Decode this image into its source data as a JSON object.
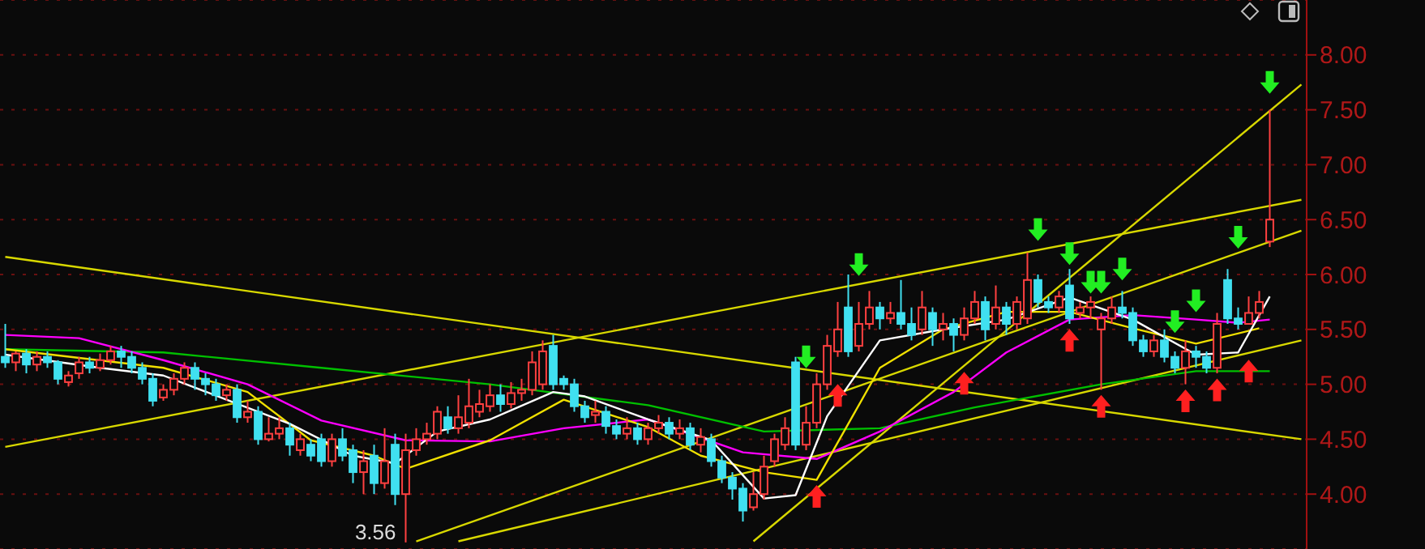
{
  "chart_data": {
    "type": "candlestick",
    "categories": [
      null,
      null,
      null,
      null,
      null,
      null,
      null,
      null,
      null,
      null,
      null,
      null,
      null,
      null,
      null,
      null,
      null,
      null,
      null,
      null,
      null,
      null,
      null,
      null,
      null,
      null,
      null,
      null,
      null,
      null,
      null,
      null,
      null,
      null,
      null,
      null,
      null,
      null,
      null,
      null,
      null,
      null,
      null,
      null,
      null,
      null,
      null,
      null,
      null,
      null,
      null,
      null,
      null,
      null,
      null,
      null,
      null,
      null,
      null,
      null,
      null,
      null,
      null,
      null,
      null,
      null,
      null,
      null,
      null,
      null,
      null,
      null,
      null,
      null,
      null,
      null,
      null,
      null,
      null,
      null,
      null,
      null,
      null,
      null,
      null,
      null,
      null,
      null,
      null,
      null,
      null,
      null,
      null,
      null,
      null,
      null,
      null,
      null,
      null,
      null,
      null,
      null,
      null,
      null,
      null,
      null,
      null,
      null,
      null,
      null,
      null,
      null,
      null,
      null,
      null,
      null,
      null,
      null,
      null,
      null,
      null,
      null,
      null,
      null
    ],
    "ohlc": [
      [
        5.25,
        5.55,
        5.15,
        5.2
      ],
      [
        5.2,
        5.3,
        5.12,
        5.28
      ],
      [
        5.28,
        5.32,
        5.1,
        5.18
      ],
      [
        5.18,
        5.3,
        5.12,
        5.25
      ],
      [
        5.25,
        5.3,
        5.15,
        5.2
      ],
      [
        5.2,
        5.22,
        5.0,
        5.05
      ],
      [
        5.02,
        5.12,
        4.98,
        5.08
      ],
      [
        5.1,
        5.25,
        5.05,
        5.2
      ],
      [
        5.2,
        5.25,
        5.1,
        5.15
      ],
      [
        5.15,
        5.28,
        5.12,
        5.22
      ],
      [
        5.22,
        5.35,
        5.18,
        5.3
      ],
      [
        5.3,
        5.35,
        5.15,
        5.25
      ],
      [
        5.25,
        5.3,
        5.1,
        5.15
      ],
      [
        5.15,
        5.2,
        5.0,
        5.05
      ],
      [
        5.05,
        5.1,
        4.8,
        4.85
      ],
      [
        4.88,
        5.0,
        4.85,
        4.95
      ],
      [
        4.95,
        5.1,
        4.9,
        5.05
      ],
      [
        5.05,
        5.2,
        5.0,
        5.15
      ],
      [
        5.15,
        5.2,
        4.95,
        5.05
      ],
      [
        5.05,
        5.1,
        4.9,
        5.0
      ],
      [
        5.0,
        5.05,
        4.85,
        4.9
      ],
      [
        4.9,
        5.0,
        4.85,
        4.95
      ],
      [
        4.95,
        5.0,
        4.65,
        4.7
      ],
      [
        4.7,
        4.85,
        4.65,
        4.75
      ],
      [
        4.75,
        4.8,
        4.45,
        4.5
      ],
      [
        4.5,
        4.7,
        4.48,
        4.55
      ],
      [
        4.55,
        4.7,
        4.5,
        4.6
      ],
      [
        4.6,
        4.65,
        4.35,
        4.45
      ],
      [
        4.4,
        4.55,
        4.35,
        4.5
      ],
      [
        4.45,
        4.5,
        4.3,
        4.35
      ],
      [
        4.5,
        4.55,
        4.25,
        4.3
      ],
      [
        4.3,
        4.55,
        4.25,
        4.5
      ],
      [
        4.5,
        4.6,
        4.3,
        4.35
      ],
      [
        4.4,
        4.45,
        4.1,
        4.2
      ],
      [
        4.2,
        4.4,
        4.0,
        4.3
      ],
      [
        4.35,
        4.45,
        4.0,
        4.1
      ],
      [
        4.1,
        4.6,
        4.05,
        4.3
      ],
      [
        4.45,
        4.55,
        3.9,
        4.0
      ],
      [
        4.0,
        4.55,
        3.56,
        4.4
      ],
      [
        4.4,
        4.6,
        4.35,
        4.5
      ],
      [
        4.5,
        4.65,
        4.45,
        4.55
      ],
      [
        4.55,
        4.8,
        4.5,
        4.75
      ],
      [
        4.7,
        4.8,
        4.55,
        4.6
      ],
      [
        4.6,
        4.9,
        4.55,
        4.7
      ],
      [
        4.65,
        5.05,
        4.6,
        4.8
      ],
      [
        4.75,
        4.95,
        4.7,
        4.82
      ],
      [
        4.8,
        5.0,
        4.75,
        4.9
      ],
      [
        4.9,
        5.0,
        4.75,
        4.82
      ],
      [
        4.82,
        5.02,
        4.78,
        4.92
      ],
      [
        4.92,
        5.05,
        4.85,
        4.95
      ],
      [
        4.95,
        5.3,
        4.9,
        5.2
      ],
      [
        5.0,
        5.4,
        4.95,
        5.3
      ],
      [
        5.35,
        5.45,
        4.95,
        5.0
      ],
      [
        5.05,
        5.08,
        4.95,
        5.0
      ],
      [
        5.0,
        5.05,
        4.75,
        4.8
      ],
      [
        4.8,
        4.85,
        4.65,
        4.7
      ],
      [
        4.72,
        4.85,
        4.65,
        4.75
      ],
      [
        4.75,
        4.8,
        4.55,
        4.62
      ],
      [
        4.62,
        4.68,
        4.5,
        4.55
      ],
      [
        4.55,
        4.7,
        4.5,
        4.6
      ],
      [
        4.6,
        4.65,
        4.45,
        4.5
      ],
      [
        4.5,
        4.65,
        4.45,
        4.6
      ],
      [
        4.6,
        4.72,
        4.55,
        4.65
      ],
      [
        4.65,
        4.7,
        4.5,
        4.55
      ],
      [
        4.55,
        4.68,
        4.5,
        4.6
      ],
      [
        4.6,
        4.65,
        4.4,
        4.45
      ],
      [
        4.45,
        4.6,
        4.38,
        4.52
      ],
      [
        4.5,
        4.55,
        4.25,
        4.3
      ],
      [
        4.3,
        4.35,
        4.1,
        4.15
      ],
      [
        4.15,
        4.2,
        3.95,
        4.05
      ],
      [
        4.05,
        4.1,
        3.75,
        3.85
      ],
      [
        3.88,
        4.2,
        3.85,
        4.0
      ],
      [
        4.0,
        4.35,
        3.95,
        4.25
      ],
      [
        4.3,
        4.55,
        4.25,
        4.5
      ],
      [
        4.45,
        4.7,
        4.4,
        4.6
      ],
      [
        5.2,
        5.25,
        4.4,
        4.45
      ],
      [
        4.45,
        4.8,
        4.4,
        4.65
      ],
      [
        4.65,
        5.1,
        4.6,
        5.0
      ],
      [
        5.0,
        5.45,
        4.95,
        5.35
      ],
      [
        5.3,
        5.75,
        5.25,
        5.5
      ],
      [
        5.7,
        6.0,
        5.25,
        5.3
      ],
      [
        5.35,
        5.75,
        5.3,
        5.55
      ],
      [
        5.55,
        5.85,
        5.5,
        5.7
      ],
      [
        5.7,
        5.75,
        5.5,
        5.6
      ],
      [
        5.6,
        5.75,
        5.55,
        5.65
      ],
      [
        5.65,
        5.95,
        5.5,
        5.55
      ],
      [
        5.55,
        5.7,
        5.4,
        5.45
      ],
      [
        5.5,
        5.85,
        5.45,
        5.7
      ],
      [
        5.65,
        5.7,
        5.35,
        5.5
      ],
      [
        5.5,
        5.65,
        5.4,
        5.55
      ],
      [
        5.55,
        5.6,
        5.3,
        5.45
      ],
      [
        5.45,
        5.7,
        5.4,
        5.6
      ],
      [
        5.6,
        5.85,
        5.55,
        5.75
      ],
      [
        5.75,
        5.8,
        5.4,
        5.5
      ],
      [
        5.55,
        5.9,
        5.5,
        5.7
      ],
      [
        5.7,
        5.75,
        5.45,
        5.55
      ],
      [
        5.55,
        5.8,
        5.5,
        5.75
      ],
      [
        5.6,
        6.2,
        5.55,
        5.95
      ],
      [
        5.95,
        6.0,
        5.7,
        5.75
      ],
      [
        5.75,
        5.8,
        5.65,
        5.7
      ],
      [
        5.7,
        5.85,
        5.65,
        5.8
      ],
      [
        5.9,
        6.05,
        5.55,
        5.6
      ],
      [
        5.65,
        5.75,
        5.6,
        5.7
      ],
      [
        5.7,
        5.8,
        5.6,
        5.75
      ],
      [
        5.5,
        5.65,
        4.95,
        5.6
      ],
      [
        5.6,
        5.8,
        5.55,
        5.7
      ],
      [
        5.7,
        5.85,
        5.6,
        5.65
      ],
      [
        5.65,
        5.7,
        5.35,
        5.4
      ],
      [
        5.4,
        5.45,
        5.25,
        5.3
      ],
      [
        5.3,
        5.45,
        5.25,
        5.4
      ],
      [
        5.4,
        5.5,
        5.2,
        5.25
      ],
      [
        5.25,
        5.3,
        5.1,
        5.15
      ],
      [
        5.15,
        5.4,
        5.0,
        5.3
      ],
      [
        5.3,
        5.35,
        5.15,
        5.25
      ],
      [
        5.25,
        5.3,
        5.1,
        5.15
      ],
      [
        5.15,
        5.65,
        5.1,
        5.55
      ],
      [
        5.95,
        6.05,
        5.55,
        5.6
      ],
      [
        5.6,
        5.7,
        5.5,
        5.55
      ],
      [
        5.55,
        5.8,
        5.55,
        5.65
      ],
      [
        5.65,
        5.85,
        5.6,
        5.75
      ],
      [
        6.3,
        7.5,
        6.25,
        6.5
      ],
      null,
      null,
      null
    ],
    "colors": [
      "#40e0f0",
      "#ff4040",
      "#40e0f0",
      "#ff4040",
      "#40e0f0",
      "#40e0f0",
      "#ff4040",
      "#ff4040",
      "#40e0f0",
      "#ff4040",
      "#ff4040",
      "#40e0f0",
      "#40e0f0",
      "#40e0f0",
      "#40e0f0",
      "#ff4040",
      "#ff4040",
      "#ff4040",
      "#40e0f0",
      "#40e0f0",
      "#40e0f0",
      "#ff4040",
      "#40e0f0",
      "#ff4040",
      "#40e0f0",
      "#ff4040",
      "#ff4040",
      "#40e0f0",
      "#ff4040",
      "#40e0f0",
      "#40e0f0",
      "#ff4040",
      "#40e0f0",
      "#40e0f0",
      "#ff4040",
      "#40e0f0",
      "#ff4040",
      "#40e0f0",
      "#ff4040",
      "#ff4040",
      "#ff4040",
      "#ff4040",
      "#40e0f0",
      "#ff4040",
      "#ff4040",
      "#ff4040",
      "#ff4040",
      "#40e0f0",
      "#ff4040",
      "#ff4040",
      "#ff4040",
      "#ff4040",
      "#40e0f0",
      "#40e0f0",
      "#40e0f0",
      "#40e0f0",
      "#ff4040",
      "#40e0f0",
      "#40e0f0",
      "#ff4040",
      "#40e0f0",
      "#ff4040",
      "#ff4040",
      "#40e0f0",
      "#ff4040",
      "#40e0f0",
      "#ff4040",
      "#40e0f0",
      "#40e0f0",
      "#40e0f0",
      "#40e0f0",
      "#ff4040",
      "#ff4040",
      "#ff4040",
      "#ff4040",
      "#40e0f0",
      "#ff4040",
      "#ff4040",
      "#ff4040",
      "#ff4040",
      "#40e0f0",
      "#ff4040",
      "#ff4040",
      "#40e0f0",
      "#ff4040",
      "#40e0f0",
      "#40e0f0",
      "#ff4040",
      "#40e0f0",
      "#ff4040",
      "#40e0f0",
      "#ff4040",
      "#ff4040",
      "#40e0f0",
      "#ff4040",
      "#40e0f0",
      "#ff4040",
      "#ff4040",
      "#40e0f0",
      "#40e0f0",
      "#ff4040",
      "#40e0f0",
      "#ff4040",
      "#ff4040",
      "#ff4040",
      "#ff4040",
      "#40e0f0",
      "#40e0f0",
      "#40e0f0",
      "#ff4040",
      "#40e0f0",
      "#40e0f0",
      "#ff4040",
      "#40e0f0",
      "#40e0f0",
      "#ff4040",
      "#40e0f0",
      "#40e0f0",
      "#ff4040",
      "#ff4040",
      "#ff4040",
      null,
      null,
      null
    ],
    "ylim": [
      3.5,
      8.5
    ],
    "yticks": [
      {
        "value": 4,
        "label": "4.00"
      },
      {
        "value": 4.5,
        "label": "4.50"
      },
      {
        "value": 5,
        "label": "5.00"
      },
      {
        "value": 5.5,
        "label": "5.50"
      },
      {
        "value": 6,
        "label": "6.00"
      },
      {
        "value": 6.5,
        "label": "6.50"
      },
      {
        "value": 7,
        "label": "7.00"
      },
      {
        "value": 7.5,
        "label": "7.50"
      },
      {
        "value": 8,
        "label": "8.00"
      }
    ],
    "tick_labels": "y",
    "grid": "y",
    "annotations": [
      "3.56"
    ],
    "series": [
      {
        "type": "line",
        "color": "#d8d800",
        "values": [
          6.16,
          null,
          null,
          null,
          null,
          null,
          null,
          null,
          null,
          null,
          null,
          null,
          null,
          null,
          null,
          null,
          null,
          null,
          null,
          null,
          null,
          null,
          null,
          null,
          null,
          null,
          null,
          null,
          null,
          null,
          null,
          null,
          null,
          null,
          null,
          null,
          null,
          null,
          null,
          null,
          null,
          null,
          null,
          null,
          null,
          null,
          null,
          null,
          null,
          null,
          null,
          null,
          null,
          null,
          null,
          null,
          null,
          null,
          null,
          null,
          null,
          null,
          null,
          null,
          null,
          null,
          null,
          null,
          null,
          null,
          null,
          null,
          null,
          null,
          null,
          null,
          null,
          null,
          null,
          null,
          null,
          null,
          null,
          null,
          null,
          null,
          null,
          null,
          null,
          null,
          null,
          null,
          null,
          null,
          null,
          null,
          null,
          null,
          null,
          null,
          null,
          null,
          null,
          null,
          null,
          null,
          null,
          null,
          null,
          null,
          null,
          null,
          null,
          null,
          null,
          null,
          null,
          null,
          null,
          null,
          null,
          null,
          null,
          4.5
        ]
      },
      {
        "type": "line",
        "color": "#d8d800",
        "values": [
          4.43,
          null,
          null,
          null,
          null,
          null,
          null,
          null,
          null,
          null,
          null,
          null,
          null,
          null,
          null,
          null,
          null,
          null,
          null,
          null,
          null,
          null,
          null,
          null,
          null,
          null,
          null,
          null,
          null,
          null,
          null,
          null,
          null,
          null,
          null,
          null,
          null,
          null,
          null,
          null,
          null,
          null,
          null,
          null,
          null,
          null,
          null,
          null,
          null,
          null,
          null,
          null,
          null,
          null,
          null,
          null,
          null,
          null,
          null,
          null,
          null,
          null,
          null,
          null,
          null,
          null,
          null,
          null,
          null,
          null,
          null,
          null,
          null,
          null,
          null,
          null,
          null,
          null,
          null,
          null,
          null,
          null,
          null,
          null,
          null,
          null,
          null,
          null,
          null,
          null,
          null,
          null,
          null,
          null,
          null,
          null,
          null,
          null,
          null,
          null,
          null,
          null,
          null,
          null,
          null,
          null,
          null,
          null,
          null,
          null,
          null,
          null,
          null,
          null,
          null,
          null,
          null,
          null,
          null,
          null,
          null,
          null,
          null,
          6.68
        ]
      },
      {
        "type": "line",
        "color": "#d8d800",
        "values": [
          null,
          null,
          null,
          null,
          null,
          null,
          null,
          null,
          null,
          null,
          null,
          null,
          null,
          null,
          null,
          null,
          null,
          null,
          null,
          null,
          null,
          null,
          null,
          null,
          null,
          null,
          null,
          null,
          null,
          null,
          null,
          null,
          null,
          null,
          null,
          null,
          null,
          null,
          null,
          3.57,
          null,
          null,
          null,
          null,
          null,
          null,
          null,
          null,
          null,
          null,
          null,
          null,
          null,
          null,
          null,
          null,
          null,
          null,
          null,
          null,
          null,
          null,
          null,
          null,
          null,
          null,
          null,
          null,
          null,
          null,
          null,
          null,
          null,
          null,
          null,
          null,
          null,
          null,
          null,
          null,
          null,
          null,
          null,
          null,
          null,
          null,
          null,
          null,
          null,
          null,
          null,
          null,
          null,
          null,
          null,
          null,
          null,
          null,
          null,
          null,
          null,
          null,
          null,
          null,
          null,
          null,
          null,
          null,
          null,
          null,
          null,
          null,
          null,
          null,
          null,
          null,
          null,
          null,
          null,
          null,
          null,
          null,
          null,
          6.4
        ]
      },
      {
        "type": "line",
        "color": "#d8d800",
        "values": [
          null,
          null,
          null,
          null,
          null,
          null,
          null,
          null,
          null,
          null,
          null,
          null,
          null,
          null,
          null,
          null,
          null,
          null,
          null,
          null,
          null,
          null,
          null,
          null,
          null,
          null,
          null,
          null,
          null,
          null,
          null,
          null,
          null,
          null,
          null,
          null,
          null,
          null,
          null,
          null,
          null,
          null,
          null,
          3.57,
          null,
          null,
          null,
          null,
          null,
          null,
          null,
          null,
          null,
          null,
          null,
          null,
          null,
          null,
          null,
          null,
          null,
          null,
          null,
          null,
          null,
          null,
          null,
          null,
          null,
          null,
          null,
          null,
          null,
          null,
          null,
          null,
          null,
          null,
          null,
          null,
          null,
          null,
          null,
          null,
          null,
          null,
          null,
          null,
          null,
          null,
          null,
          null,
          null,
          null,
          null,
          null,
          null,
          null,
          null,
          null,
          null,
          null,
          null,
          null,
          null,
          null,
          null,
          null,
          null,
          null,
          null,
          null,
          null,
          null,
          null,
          null,
          null,
          null,
          null,
          null,
          null,
          null,
          null,
          5.4
        ]
      },
      {
        "type": "line",
        "color": "#d8d800",
        "values": [
          null,
          null,
          null,
          null,
          null,
          null,
          null,
          null,
          null,
          null,
          null,
          null,
          null,
          null,
          null,
          null,
          null,
          null,
          null,
          null,
          null,
          null,
          null,
          null,
          null,
          null,
          null,
          null,
          null,
          null,
          null,
          null,
          null,
          null,
          null,
          null,
          null,
          null,
          null,
          null,
          null,
          null,
          null,
          null,
          null,
          null,
          null,
          null,
          null,
          null,
          null,
          null,
          null,
          null,
          null,
          null,
          null,
          null,
          null,
          null,
          null,
          null,
          null,
          null,
          null,
          null,
          null,
          null,
          null,
          null,
          null,
          3.57,
          null,
          null,
          null,
          null,
          null,
          null,
          null,
          null,
          null,
          null,
          null,
          null,
          null,
          null,
          null,
          null,
          null,
          null,
          null,
          null,
          null,
          null,
          null,
          null,
          null,
          null,
          null,
          null,
          null,
          null,
          null,
          null,
          null,
          null,
          null,
          null,
          null,
          null,
          null,
          null,
          null,
          null,
          null,
          null,
          null,
          null,
          null,
          null,
          null,
          null,
          null,
          7.73
        ]
      },
      {
        "type": "line",
        "color": "#00c000",
        "values": [
          5.32,
          null,
          null,
          null,
          null,
          null,
          null,
          null,
          null,
          null,
          null,
          null,
          null,
          null,
          null,
          5.29,
          null,
          null,
          null,
          null,
          null,
          null,
          null,
          null,
          null,
          null,
          null,
          null,
          null,
          null,
          5.15,
          null,
          null,
          null,
          null,
          null,
          null,
          null,
          null,
          null,
          null,
          null,
          null,
          null,
          null,
          null,
          5.0,
          null,
          null,
          null,
          null,
          null,
          null,
          null,
          null,
          null,
          null,
          null,
          null,
          null,
          null,
          4.81,
          null,
          null,
          null,
          null,
          null,
          null,
          null,
          null,
          null,
          null,
          4.57,
          null,
          null,
          null,
          null,
          null,
          null,
          null,
          null,
          null,
          null,
          4.6,
          null,
          null,
          null,
          null,
          null,
          null,
          null,
          null,
          4.79,
          null,
          null,
          null,
          null,
          null,
          null,
          null,
          null,
          null,
          null,
          null,
          5.0,
          null,
          null,
          null,
          null,
          null,
          null,
          null,
          null,
          5.12,
          null,
          null,
          null,
          null,
          null,
          null,
          5.12,
          null,
          null,
          null
        ]
      },
      {
        "type": "line",
        "color": "#ff00ff",
        "values": [
          5.45,
          null,
          null,
          null,
          null,
          null,
          null,
          5.42,
          null,
          null,
          null,
          null,
          null,
          null,
          null,
          5.22,
          null,
          null,
          null,
          null,
          null,
          null,
          null,
          5.0,
          null,
          null,
          null,
          null,
          null,
          null,
          4.67,
          null,
          null,
          null,
          null,
          null,
          null,
          null,
          4.49,
          null,
          null,
          null,
          null,
          null,
          null,
          null,
          4.48,
          null,
          null,
          null,
          null,
          null,
          null,
          4.6,
          null,
          null,
          null,
          null,
          null,
          null,
          null,
          4.68,
          null,
          null,
          null,
          null,
          null,
          null,
          null,
          null,
          4.38,
          null,
          null,
          null,
          null,
          null,
          null,
          4.32,
          null,
          null,
          null,
          null,
          null,
          4.57,
          null,
          null,
          null,
          null,
          null,
          null,
          4.93,
          null,
          null,
          null,
          null,
          5.29,
          null,
          null,
          null,
          null,
          null,
          5.59,
          null,
          null,
          null,
          null,
          null,
          5.63,
          null,
          null,
          null,
          null,
          null,
          5.59,
          null,
          null,
          null,
          5.56,
          null,
          null,
          5.59,
          null,
          null,
          null
        ]
      },
      {
        "type": "line",
        "color": "#f0e000",
        "values": [
          5.32,
          null,
          null,
          null,
          null,
          null,
          null,
          null,
          null,
          null,
          null,
          null,
          null,
          null,
          null,
          5.15,
          null,
          null,
          null,
          null,
          null,
          null,
          null,
          4.93,
          null,
          null,
          null,
          null,
          null,
          4.49,
          null,
          null,
          null,
          null,
          null,
          4.35,
          null,
          null,
          4.23,
          null,
          null,
          null,
          null,
          null,
          null,
          null,
          4.49,
          null,
          null,
          null,
          null,
          null,
          null,
          4.86,
          null,
          null,
          null,
          null,
          null,
          null,
          null,
          4.61,
          null,
          null,
          null,
          null,
          4.35,
          null,
          null,
          null,
          null,
          null,
          4.2,
          null,
          null,
          null,
          null,
          4.13,
          null,
          null,
          null,
          null,
          null,
          5.15,
          null,
          null,
          null,
          null,
          null,
          5.5,
          null,
          null,
          null,
          null,
          null,
          5.66,
          null,
          null,
          null,
          null,
          null,
          5.66,
          null,
          null,
          null,
          null,
          null,
          5.51,
          null,
          null,
          null,
          null,
          null,
          5.37,
          null,
          null,
          null,
          null,
          null,
          5.51,
          null,
          null,
          null,
          null
        ]
      },
      {
        "type": "line",
        "color": "#ffffff",
        "values": [
          5.27,
          null,
          null,
          null,
          null,
          null,
          null,
          null,
          null,
          5.15,
          null,
          null,
          null,
          null,
          null,
          5.08,
          null,
          null,
          null,
          null,
          null,
          4.86,
          null,
          null,
          null,
          null,
          null,
          4.64,
          null,
          null,
          null,
          null,
          null,
          4.35,
          null,
          null,
          null,
          4.28,
          null,
          null,
          null,
          4.57,
          null,
          null,
          null,
          null,
          4.68,
          null,
          null,
          null,
          null,
          null,
          4.93,
          null,
          null,
          4.89,
          null,
          null,
          null,
          null,
          null,
          4.68,
          null,
          null,
          null,
          null,
          null,
          4.49,
          null,
          null,
          null,
          null,
          3.96,
          null,
          null,
          3.99,
          null,
          null,
          4.71,
          null,
          null,
          null,
          null,
          5.4,
          null,
          null,
          null,
          null,
          null,
          5.5,
          null,
          null,
          null,
          null,
          null,
          5.59,
          null,
          null,
          null,
          null,
          null,
          5.79,
          null,
          null,
          null,
          null,
          null,
          5.59,
          null,
          null,
          null,
          null,
          null,
          5.27,
          null,
          null,
          null,
          5.29,
          null,
          null,
          5.8,
          null,
          null,
          null
        ]
      },
      {
        "type": "scatter",
        "color": "#22ee22",
        "values": [
          null,
          null,
          null,
          null,
          null,
          null,
          null,
          null,
          null,
          null,
          null,
          null,
          null,
          null,
          null,
          null,
          null,
          null,
          null,
          null,
          null,
          null,
          null,
          null,
          null,
          null,
          null,
          null,
          null,
          null,
          null,
          null,
          null,
          null,
          null,
          null,
          null,
          null,
          null,
          null,
          null,
          null,
          null,
          null,
          null,
          null,
          null,
          null,
          null,
          null,
          null,
          null,
          null,
          null,
          null,
          null,
          null,
          null,
          null,
          null,
          null,
          null,
          null,
          null,
          null,
          null,
          null,
          null,
          null,
          null,
          null,
          null,
          null,
          null,
          null,
          null,
          5.25,
          null,
          null,
          null,
          null,
          6.09,
          null,
          null,
          null,
          null,
          null,
          null,
          null,
          null,
          null,
          null,
          null,
          null,
          null,
          null,
          null,
          null,
          6.41,
          null,
          null,
          6.19,
          null,
          5.93,
          5.93,
          null,
          6.05,
          null,
          null,
          null,
          null,
          5.57,
          null,
          5.76,
          null,
          null,
          null,
          6.34,
          null,
          null,
          7.75,
          null,
          null,
          null
        ]
      },
      {
        "type": "scatter",
        "color": "#ff2020",
        "values": [
          null,
          null,
          null,
          null,
          null,
          null,
          null,
          null,
          null,
          null,
          null,
          null,
          null,
          null,
          null,
          null,
          null,
          null,
          null,
          null,
          null,
          null,
          null,
          null,
          null,
          null,
          null,
          null,
          null,
          null,
          null,
          null,
          null,
          null,
          null,
          null,
          null,
          null,
          null,
          null,
          null,
          null,
          null,
          null,
          null,
          null,
          null,
          null,
          null,
          null,
          null,
          null,
          null,
          null,
          null,
          null,
          null,
          null,
          null,
          null,
          null,
          null,
          null,
          null,
          null,
          null,
          null,
          null,
          null,
          null,
          null,
          null,
          null,
          null,
          null,
          null,
          null,
          3.98,
          null,
          4.9,
          null,
          null,
          null,
          null,
          null,
          null,
          null,
          null,
          null,
          null,
          null,
          5.01,
          null,
          null,
          null,
          null,
          null,
          null,
          null,
          null,
          null,
          5.4,
          null,
          null,
          4.8,
          null,
          null,
          null,
          null,
          null,
          null,
          null,
          4.85,
          null,
          null,
          4.95,
          null,
          null,
          5.12,
          null,
          null,
          null,
          null,
          null
        ]
      }
    ]
  }
}
